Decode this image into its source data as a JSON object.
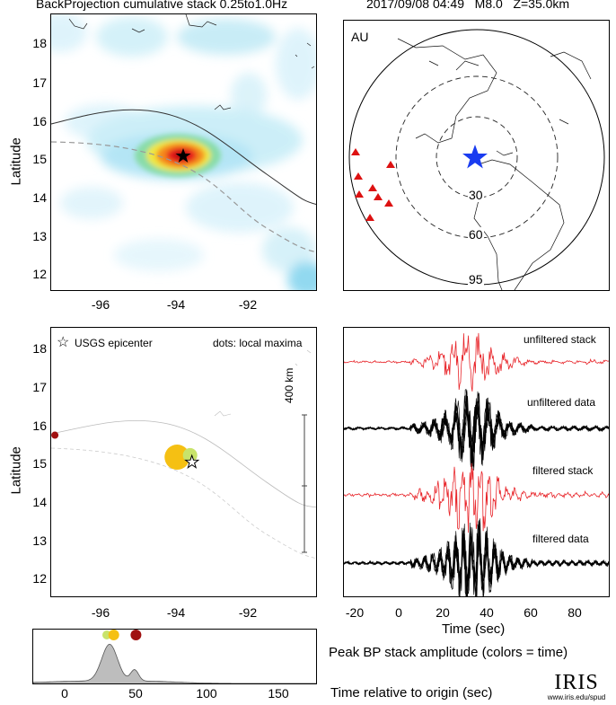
{
  "titles": {
    "left": "BackProjection cumulative stack 0.25to1.0Hz",
    "right": "2017/09/08 04:49   M8.0   Z=35.0km"
  },
  "map_top": {
    "ylabel": "Latitude",
    "yticks": [
      "18",
      "17",
      "16",
      "15",
      "14",
      "13",
      "12"
    ],
    "xticks": [
      "-96",
      "-94",
      "-92"
    ]
  },
  "globe": {
    "network": "AU",
    "rings": [
      "30",
      "60",
      "95"
    ]
  },
  "map_bottom": {
    "ylabel": "Latitude",
    "yticks": [
      "18",
      "17",
      "16",
      "15",
      "14",
      "13",
      "12"
    ],
    "xticks": [
      "-96",
      "-94",
      "-92"
    ],
    "legend_star": "USGS epicenter",
    "legend_dots": "dots: local maxima",
    "scalebar": "400 km"
  },
  "traces": {
    "labels": [
      "unfiltered stack",
      "unfiltered data",
      "filtered stack",
      "filtered data"
    ],
    "xticks": [
      "-20",
      "0",
      "20",
      "40",
      "60",
      "80"
    ],
    "xlabel": "Time (sec)"
  },
  "amplitude": {
    "xticks": [
      "0",
      "50",
      "100",
      "150"
    ],
    "title": "Peak BP stack amplitude (colors = time)",
    "xlabel": "Time relative to origin (sec)"
  },
  "logo": {
    "name": "IRIS",
    "url": "www.iris.edu/spud"
  },
  "colors": {
    "stack_red": "#e8252a",
    "star_blue": "#1a3cf0",
    "station_red": "#dd1111"
  },
  "chart_data": [
    {
      "type": "heatmap",
      "xlim": [
        -97.5,
        -90.3
      ],
      "ylim": [
        11.5,
        18.5
      ],
      "peak": {
        "lon": -93.8,
        "lat": 15.05
      },
      "epicenter": {
        "lon": -93.7,
        "lat": 15.02
      }
    },
    {
      "type": "scatter",
      "xlim": [
        -97.5,
        -90.3
      ],
      "ylim": [
        11.5,
        18.5
      ],
      "points": [
        {
          "lon": -94.1,
          "lat": 15.15,
          "color": "#f5c013"
        },
        {
          "lon": -93.75,
          "lat": 15.2,
          "color": "#c8e36b"
        },
        {
          "lon": -97.4,
          "lat": 15.72,
          "color": "#a01010"
        }
      ],
      "epicenter": {
        "lon": -93.7,
        "lat": 15.02
      }
    },
    {
      "type": "line",
      "xlim": [
        -25,
        95
      ],
      "series": [
        "unfiltered stack",
        "unfiltered data",
        "filtered stack",
        "filtered data"
      ]
    },
    {
      "type": "area",
      "xlim": [
        -25,
        180
      ],
      "peaks": [
        {
          "t": 28,
          "color": "#c8e36b"
        },
        {
          "t": 33,
          "color": "#f5c013"
        },
        {
          "t": 49,
          "color": "#a01010"
        }
      ]
    }
  ]
}
